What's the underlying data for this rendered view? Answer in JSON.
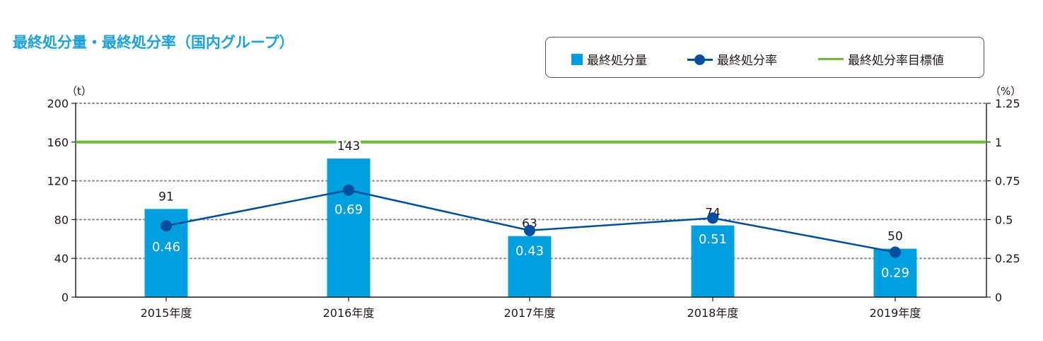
{
  "title": "最終処分量・最終処分率（国内グループ）",
  "legend": {
    "bar_label": "最終処分量",
    "line_label": "最終処分率",
    "target_label": "最終処分率目標値"
  },
  "colors": {
    "bar": "#00a0e0",
    "line": "#004f9f",
    "target": "#6cbb3c",
    "title": "#1aa2dc"
  },
  "chart_data": {
    "type": "bar",
    "title": "最終処分量・最終処分率（国内グループ）",
    "categories": [
      "2015年度",
      "2016年度",
      "2017年度",
      "2018年度",
      "2019年度"
    ],
    "series": [
      {
        "name": "最終処分量",
        "type": "bar",
        "axis": "left",
        "values": [
          91,
          143,
          63,
          74,
          50
        ]
      },
      {
        "name": "最終処分率",
        "type": "line",
        "axis": "right",
        "values": [
          0.46,
          0.69,
          0.43,
          0.51,
          0.29
        ]
      },
      {
        "name": "最終処分率目標値",
        "type": "line",
        "axis": "right",
        "values": [
          1,
          1,
          1,
          1,
          1
        ]
      }
    ],
    "y_left": {
      "unit": "（t）",
      "ylim": [
        0,
        200
      ],
      "ticks": [
        "0",
        "40",
        "80",
        "120",
        "160",
        "200"
      ]
    },
    "y_right": {
      "unit": "（%）",
      "ylim": [
        0,
        1.25
      ],
      "ticks": [
        "0",
        "0.25",
        "0.5",
        "0.75",
        "1",
        "1.25"
      ]
    },
    "grid": true,
    "legend_position": "top-right"
  }
}
